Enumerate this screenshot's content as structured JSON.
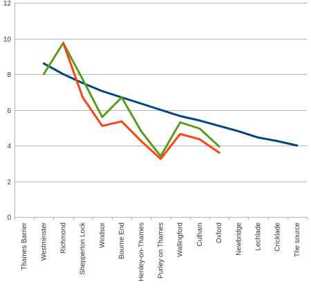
{
  "chart_data": {
    "type": "line",
    "title": "",
    "xlabel": "",
    "ylabel": "",
    "ylim": [
      0,
      12
    ],
    "yticks": [
      0,
      2,
      4,
      6,
      8,
      10,
      12
    ],
    "grid": true,
    "legend": "none",
    "categories": [
      "Thames Barrier",
      "Westminster",
      "Richmond",
      "Shepperton Lock",
      "Windsor",
      "Bourne End",
      "Henley-on-Thames",
      "Purley on Thames",
      "Wallingford",
      "Culham",
      "Oxford",
      "Newbridge",
      "Lechlade",
      "Cricklade",
      "The source"
    ],
    "series": [
      {
        "color": "#004586",
        "values": [
          null,
          8.6,
          8.0,
          7.5,
          7.05,
          6.7,
          6.35,
          6.0,
          5.65,
          5.4,
          5.1,
          4.8,
          4.45,
          4.25,
          4.0
        ]
      },
      {
        "color": "#579d1c",
        "values": [
          null,
          8.0,
          9.75,
          7.7,
          5.6,
          6.7,
          4.8,
          3.4,
          5.3,
          4.95,
          3.95,
          null,
          null,
          null,
          null
        ]
      },
      {
        "color": "#ff420e",
        "values": [
          null,
          null,
          9.75,
          6.7,
          5.1,
          5.35,
          4.25,
          3.25,
          4.65,
          4.35,
          3.6,
          null,
          null,
          null,
          null
        ]
      }
    ]
  }
}
